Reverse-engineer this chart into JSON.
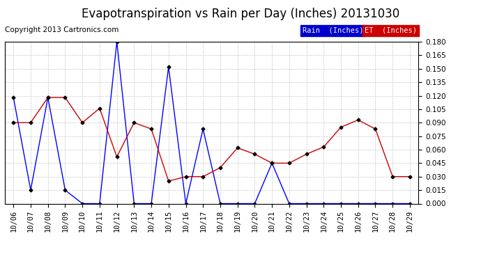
{
  "title": "Evapotranspiration vs Rain per Day (Inches) 20131030",
  "copyright": "Copyright 2013 Cartronics.com",
  "background_color": "#ffffff",
  "plot_bg_color": "#ffffff",
  "grid_color": "#c8c8c8",
  "x_labels": [
    "10/06",
    "10/07",
    "10/08",
    "10/09",
    "10/10",
    "10/11",
    "10/12",
    "10/13",
    "10/14",
    "10/15",
    "10/16",
    "10/17",
    "10/18",
    "10/19",
    "10/20",
    "10/21",
    "10/22",
    "10/23",
    "10/24",
    "10/25",
    "10/26",
    "10/27",
    "10/28",
    "10/29"
  ],
  "rain_values": [
    0.118,
    0.015,
    0.118,
    0.015,
    0.0,
    0.0,
    0.18,
    0.0,
    0.0,
    0.152,
    0.0,
    0.083,
    0.0,
    0.0,
    0.0,
    0.045,
    0.0,
    0.0,
    0.0,
    0.0,
    0.0,
    0.0,
    0.0,
    0.0
  ],
  "et_values": [
    0.09,
    0.09,
    0.118,
    0.118,
    0.09,
    0.106,
    0.052,
    0.09,
    0.083,
    0.025,
    0.03,
    0.03,
    0.04,
    0.062,
    0.055,
    0.045,
    0.045,
    0.055,
    0.063,
    0.085,
    0.093,
    0.083,
    0.03,
    0.03
  ],
  "rain_color": "#0000ff",
  "et_color": "#cc0000",
  "marker": "D",
  "marker_size": 2.5,
  "line_width": 1.0,
  "ylim": [
    0.0,
    0.18
  ],
  "yticks": [
    0.0,
    0.015,
    0.03,
    0.045,
    0.06,
    0.075,
    0.09,
    0.105,
    0.12,
    0.135,
    0.15,
    0.165,
    0.18
  ],
  "legend_rain_label": "Rain  (Inches)",
  "legend_et_label": "ET  (Inches)",
  "legend_rain_bg": "#0000cc",
  "legend_et_bg": "#cc0000",
  "title_fontsize": 12,
  "copyright_fontsize": 7.5,
  "tick_fontsize": 7.5
}
